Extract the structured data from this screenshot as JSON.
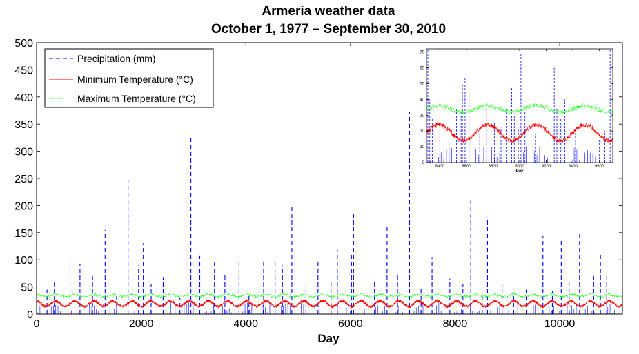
{
  "chart_data": [
    {
      "type": "line",
      "title": "Armeria weather data",
      "subtitle": "October 1, 1977 – September 30, 2010",
      "xlabel": "Day",
      "ylabel": "",
      "xlim": [
        0,
        11200
      ],
      "ylim": [
        0,
        500
      ],
      "xticks": [
        0,
        2000,
        4000,
        6000,
        8000,
        10000
      ],
      "yticks": [
        0,
        50,
        100,
        150,
        200,
        250,
        300,
        350,
        400,
        450,
        500
      ],
      "grid": false,
      "legend_position": "top-left",
      "series": [
        {
          "name": "Precipitation (mm)",
          "color": "#0000ff",
          "style": "dashed",
          "spikes": [
            [
              200,
              45
            ],
            [
              340,
              58
            ],
            [
              640,
              100
            ],
            [
              830,
              92
            ],
            [
              1070,
              70
            ],
            [
              1310,
              155
            ],
            [
              1530,
              35
            ],
            [
              1750,
              248
            ],
            [
              1950,
              90
            ],
            [
              2040,
              130
            ],
            [
              2190,
              55
            ],
            [
              2420,
              68
            ],
            [
              2740,
              30
            ],
            [
              2950,
              325
            ],
            [
              3120,
              108
            ],
            [
              3400,
              95
            ],
            [
              3600,
              75
            ],
            [
              3870,
              98
            ],
            [
              4060,
              35
            ],
            [
              4340,
              100
            ],
            [
              4560,
              96
            ],
            [
              4700,
              90
            ],
            [
              4880,
              203
            ],
            [
              4940,
              120
            ],
            [
              5150,
              55
            ],
            [
              5380,
              95
            ],
            [
              5630,
              60
            ],
            [
              5750,
              118
            ],
            [
              6020,
              110
            ],
            [
              6060,
              186
            ],
            [
              6260,
              40
            ],
            [
              6460,
              62
            ],
            [
              6700,
              165
            ],
            [
              6900,
              75
            ],
            [
              7130,
              372
            ],
            [
              7350,
              50
            ],
            [
              7560,
              105
            ],
            [
              7900,
              65
            ],
            [
              8150,
              55
            ],
            [
              8300,
              210
            ],
            [
              8520,
              40
            ],
            [
              8620,
              178
            ],
            [
              8900,
              55
            ],
            [
              9120,
              40
            ],
            [
              9360,
              45
            ],
            [
              9680,
              145
            ],
            [
              9860,
              42
            ],
            [
              10030,
              140
            ],
            [
              10180,
              60
            ],
            [
              10380,
              152
            ],
            [
              10650,
              70
            ],
            [
              10780,
              110
            ],
            [
              10900,
              70
            ]
          ]
        },
        {
          "name": "Minimum Temperature (°C)",
          "color": "#ff0000",
          "style": "solid",
          "mean": 19,
          "amplitude": 5,
          "period_days": 365
        },
        {
          "name": "Maximum Temperature (°C)",
          "color": "#00ff00",
          "style": "dotted",
          "mean": 34,
          "amplitude": 2,
          "period_days": 365
        }
      ]
    },
    {
      "type": "line",
      "title": "",
      "xlabel": "Day",
      "xlim": [
        8300,
        9700
      ],
      "ylim": [
        0,
        72
      ],
      "xticks": [
        8400,
        8600,
        8800,
        9000,
        9200,
        9400,
        9600
      ],
      "yticks": [
        0,
        10,
        20,
        30,
        40,
        50,
        60,
        70
      ],
      "series": [
        {
          "name": "Precipitation (mm)",
          "color": "#0000ff",
          "style": "dashed",
          "spikes": [
            [
              8310,
              72
            ],
            [
              8325,
              40
            ],
            [
              8345,
              28
            ],
            [
              8400,
              20
            ],
            [
              8470,
              12
            ],
            [
              8525,
              35
            ],
            [
              8560,
              32
            ],
            [
              8570,
              50
            ],
            [
              8590,
              55
            ],
            [
              8620,
              45
            ],
            [
              8650,
              72
            ],
            [
              8700,
              18
            ],
            [
              8750,
              35
            ],
            [
              8810,
              25
            ],
            [
              8860,
              22
            ],
            [
              8900,
              35
            ],
            [
              8940,
              48
            ],
            [
              8960,
              30
            ],
            [
              8990,
              22
            ],
            [
              9010,
              70
            ],
            [
              9040,
              32
            ],
            [
              9120,
              18
            ],
            [
              9220,
              10
            ],
            [
              9260,
              60
            ],
            [
              9280,
              35
            ],
            [
              9310,
              28
            ],
            [
              9340,
              40
            ],
            [
              9370,
              36
            ],
            [
              9420,
              20
            ],
            [
              9600,
              15
            ],
            [
              9640,
              20
            ],
            [
              9680,
              72
            ]
          ]
        },
        {
          "name": "Minimum Temperature (°C)",
          "color": "#ff0000",
          "style": "solid",
          "mean": 19,
          "amplitude": 5,
          "period_days": 365
        },
        {
          "name": "Maximum Temperature (°C)",
          "color": "#00ff00",
          "style": "dotted",
          "mean": 34,
          "amplitude": 2,
          "period_days": 365
        }
      ]
    }
  ]
}
